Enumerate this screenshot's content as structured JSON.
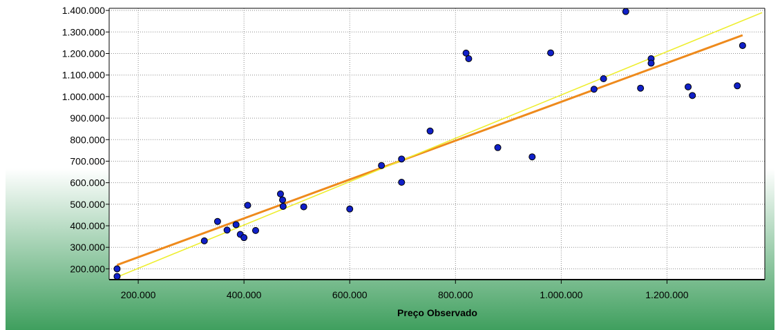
{
  "chart_data": {
    "type": "scatter",
    "title": "",
    "xlabel": "Preço Observado",
    "ylabel": "",
    "xlim": [
      145000,
      1385000
    ],
    "ylim": [
      150000,
      1410000
    ],
    "x_ticks": [
      200000,
      400000,
      600000,
      800000,
      1000000,
      1200000
    ],
    "x_tick_labels": [
      "200.000",
      "400.000",
      "600.000",
      "800.000",
      "1.000.000",
      "1.200.000"
    ],
    "y_ticks": [
      200000,
      300000,
      400000,
      500000,
      600000,
      700000,
      800000,
      900000,
      1000000,
      1100000,
      1200000,
      1300000,
      1400000
    ],
    "y_tick_labels": [
      "200.000",
      "300.000",
      "400.000",
      "500.000",
      "600.000",
      "700.000",
      "800.000",
      "900.000",
      "1.000.000",
      "1.100.000",
      "1.200.000",
      "1.300.000",
      "1.400.000"
    ],
    "grid": true,
    "points": [
      [
        160000,
        200000
      ],
      [
        160000,
        165000
      ],
      [
        325000,
        330000
      ],
      [
        350000,
        420000
      ],
      [
        368000,
        380000
      ],
      [
        385000,
        405000
      ],
      [
        393000,
        360000
      ],
      [
        400000,
        345000
      ],
      [
        407000,
        495000
      ],
      [
        422000,
        378000
      ],
      [
        469000,
        548000
      ],
      [
        473000,
        520000
      ],
      [
        474000,
        490000
      ],
      [
        513000,
        488000
      ],
      [
        600000,
        478000
      ],
      [
        660000,
        680000
      ],
      [
        698000,
        710000
      ],
      [
        698000,
        602000
      ],
      [
        752000,
        840000
      ],
      [
        820000,
        1202000
      ],
      [
        825000,
        1176000
      ],
      [
        880000,
        763000
      ],
      [
        945000,
        720000
      ],
      [
        980000,
        1203000
      ],
      [
        1062000,
        1034000
      ],
      [
        1080000,
        1083000
      ],
      [
        1122000,
        1395000
      ],
      [
        1150000,
        1039000
      ],
      [
        1170000,
        1176000
      ],
      [
        1170000,
        1155000
      ],
      [
        1240000,
        1045000
      ],
      [
        1248000,
        1005000
      ],
      [
        1333000,
        1050000
      ],
      [
        1343000,
        1237000
      ]
    ],
    "lines": [
      {
        "color": "#ee8a1c",
        "x": [
          160000,
          1343000
        ],
        "y": [
          218000,
          1285000
        ]
      },
      {
        "color": "#eeee30",
        "x": [
          160000,
          1380000
        ],
        "y": [
          162000,
          1390000
        ]
      }
    ],
    "marker_color": "#1020c8",
    "background_gradient": [
      "#ffffff",
      "#3f9f5e"
    ]
  }
}
